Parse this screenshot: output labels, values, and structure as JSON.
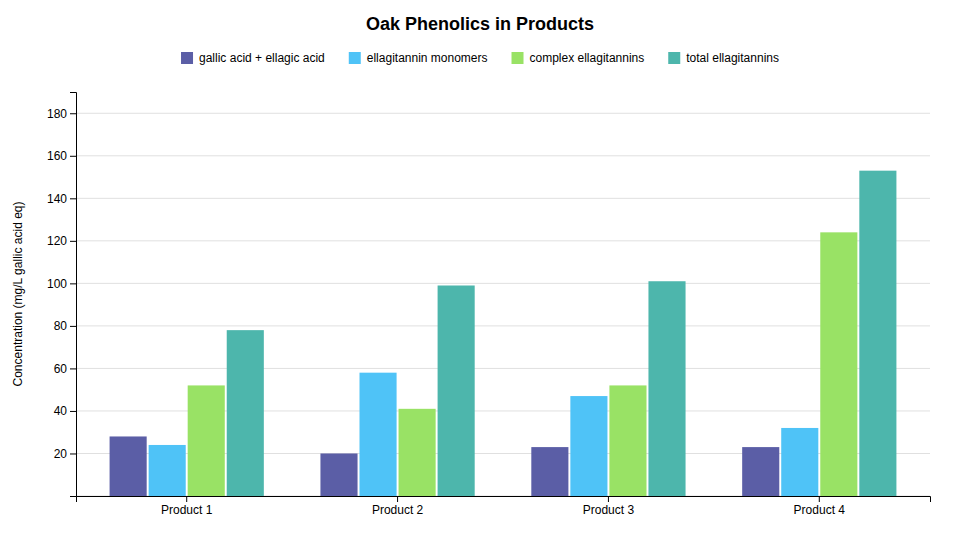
{
  "chart_data": {
    "type": "bar",
    "title": "Oak Phenolics in Products",
    "ylabel": "Concentration (mg/L gallic acid eq)",
    "categories": [
      "Product 1",
      "Product 2",
      "Product 3",
      "Product 4"
    ],
    "series": [
      {
        "name": "gallic acid + ellagic acid",
        "color": "#5B5EA6",
        "values": [
          28,
          20,
          23,
          23
        ]
      },
      {
        "name": "ellagitannin monomers",
        "color": "#4FC3F7",
        "values": [
          24,
          58,
          47,
          32
        ]
      },
      {
        "name": "complex ellagitannins",
        "color": "#99E265",
        "values": [
          52,
          41,
          52,
          124
        ]
      },
      {
        "name": "total ellagitannins",
        "color": "#4DB6AC",
        "values": [
          78,
          99,
          101,
          153
        ]
      }
    ],
    "ylim": [
      0,
      190
    ],
    "yticks": [
      {
        "value": 0,
        "label": null
      },
      20,
      40,
      60,
      80,
      100,
      120,
      140,
      160,
      180
    ],
    "grid": true,
    "legend": "top"
  }
}
